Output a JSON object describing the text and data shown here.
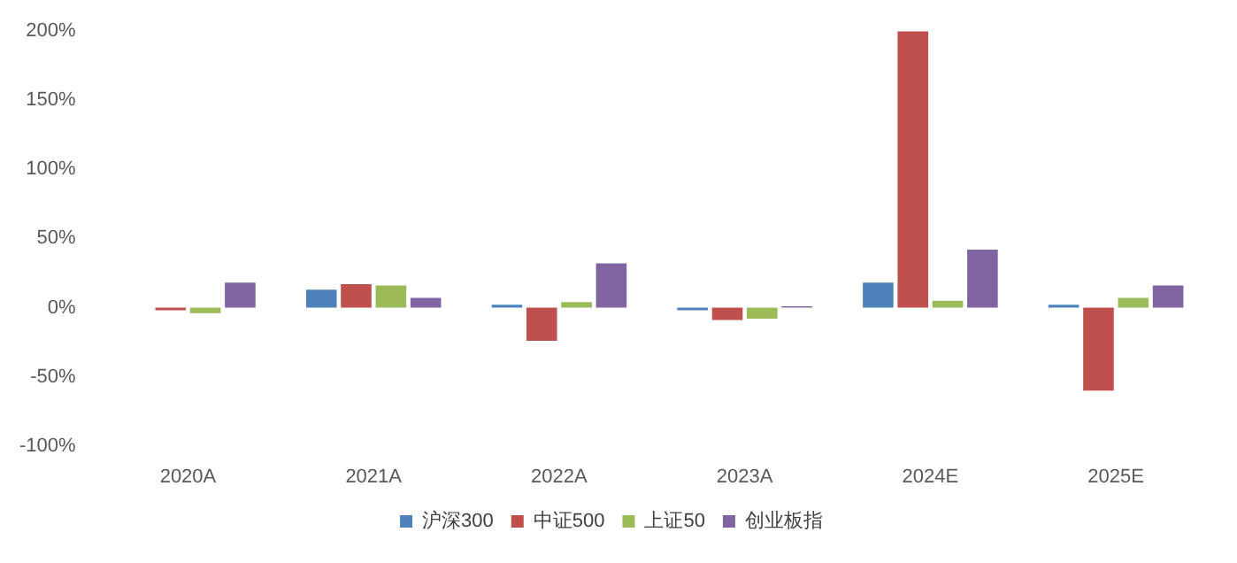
{
  "chart_data": {
    "type": "bar",
    "categories": [
      "2020A",
      "2021A",
      "2022A",
      "2023A",
      "2024E",
      "2025E"
    ],
    "series": [
      {
        "name": "沪深300",
        "color": "#4f81bd",
        "values": [
          0,
          13,
          2,
          -2,
          18,
          2
        ]
      },
      {
        "name": "中证500",
        "color": "#c0504d",
        "values": [
          -2,
          17,
          -24,
          -9,
          200,
          -60
        ]
      },
      {
        "name": "上证50",
        "color": "#9bbb59",
        "values": [
          -4,
          16,
          4,
          -8,
          5,
          7
        ]
      },
      {
        "name": "创业板指",
        "color": "#8064a2",
        "values": [
          18,
          7,
          32,
          1,
          42,
          16
        ]
      }
    ],
    "ylim": [
      -100,
      200
    ],
    "yticks": [
      {
        "value": -100,
        "label": "-100%"
      },
      {
        "value": -50,
        "label": "-50%"
      },
      {
        "value": 0,
        "label": "0%"
      },
      {
        "value": 50,
        "label": "50%"
      },
      {
        "value": 100,
        "label": "100%"
      },
      {
        "value": 150,
        "label": "150%"
      },
      {
        "value": 200,
        "label": "200%"
      }
    ],
    "grid": false,
    "legend": "bottom"
  }
}
